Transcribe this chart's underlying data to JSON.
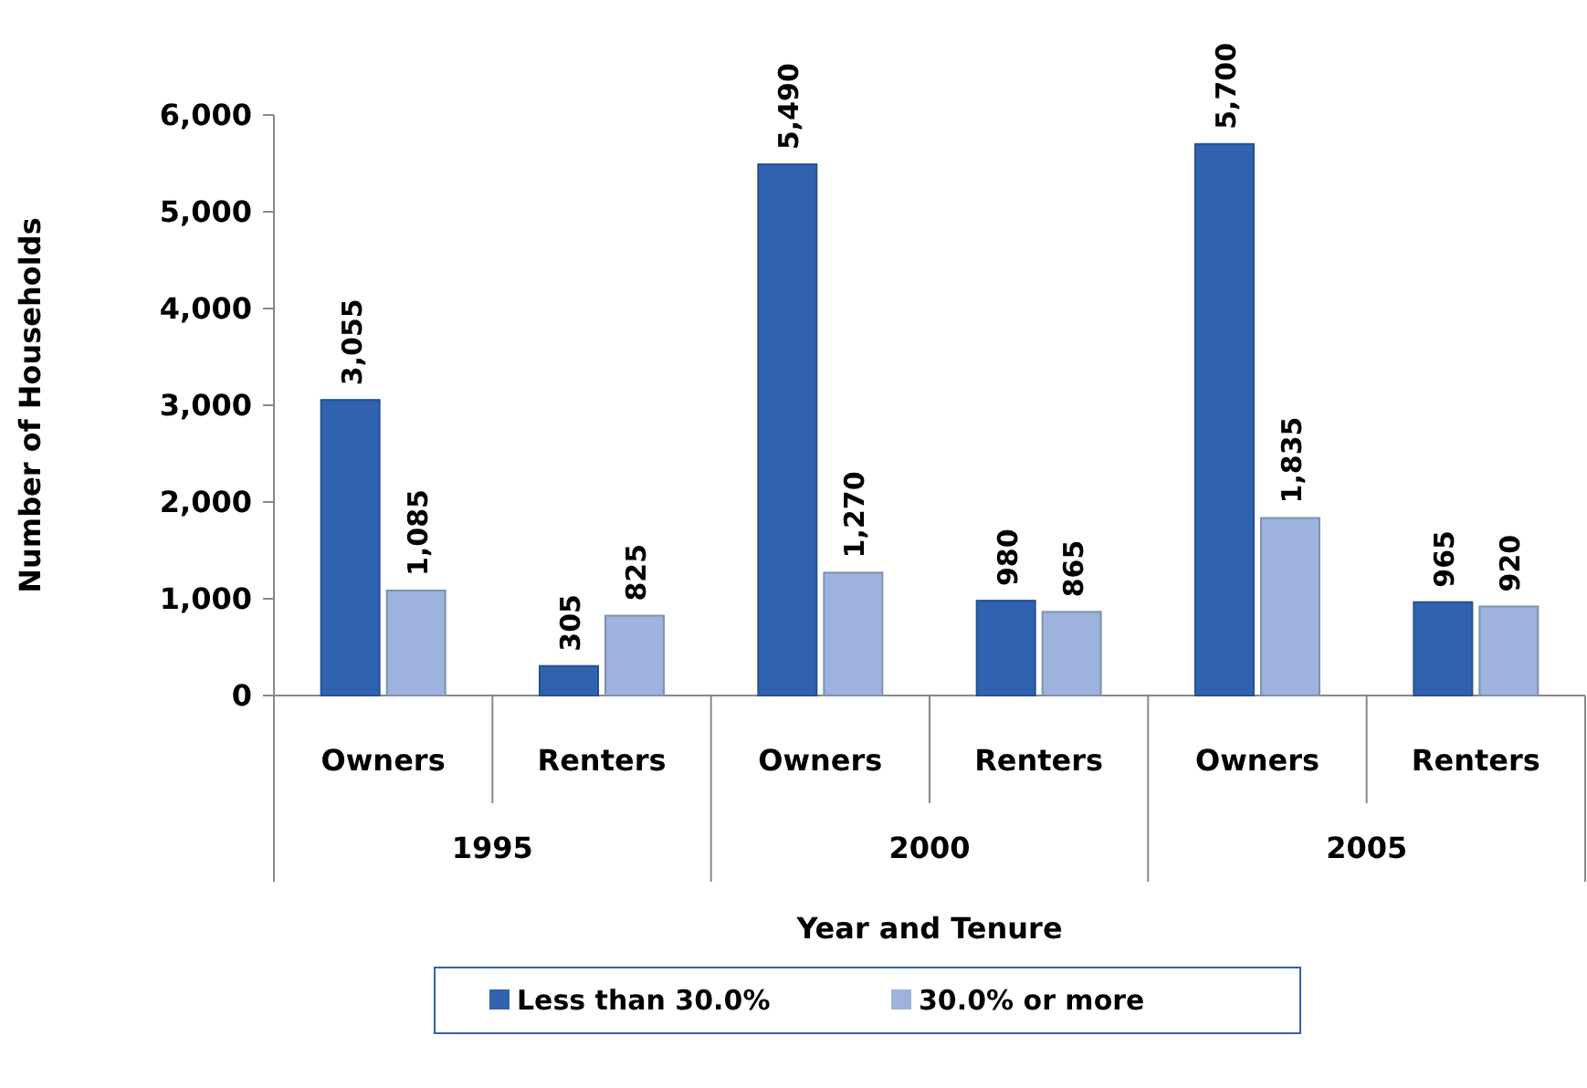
{
  "chart_data": {
    "type": "bar",
    "xlabel": "Year and Tenure",
    "ylabel": "Number of Households",
    "categories": [
      "Owners",
      "Renters",
      "Owners",
      "Renters",
      "Owners",
      "Renters"
    ],
    "annotations": [
      "1995",
      "2000",
      "2005"
    ],
    "series": [
      {
        "name": "Less than 30.0%",
        "color": "#2f63b0",
        "values": [
          3055,
          305,
          5490,
          980,
          5700,
          965
        ],
        "value_labels": [
          "3,055",
          "305",
          "5,490",
          "980",
          "5,700",
          "965"
        ]
      },
      {
        "name": "30.0% or more",
        "color": "#9db2dc",
        "values": [
          1085,
          825,
          1270,
          865,
          1835,
          920
        ],
        "value_labels": [
          "1,085",
          "825",
          "1,270",
          "865",
          "1,835",
          "920"
        ]
      }
    ],
    "ylim": [
      0,
      6000
    ],
    "yticks": [
      {
        "value": 0,
        "label": "0"
      },
      {
        "value": 1000,
        "label": "1,000"
      },
      {
        "value": 2000,
        "label": "2,000"
      },
      {
        "value": 3000,
        "label": "3,000"
      },
      {
        "value": 4000,
        "label": "4,000"
      },
      {
        "value": 5000,
        "label": "5,000"
      },
      {
        "value": 6000,
        "label": "6,000"
      }
    ],
    "grid": false,
    "legend": "bottom"
  }
}
